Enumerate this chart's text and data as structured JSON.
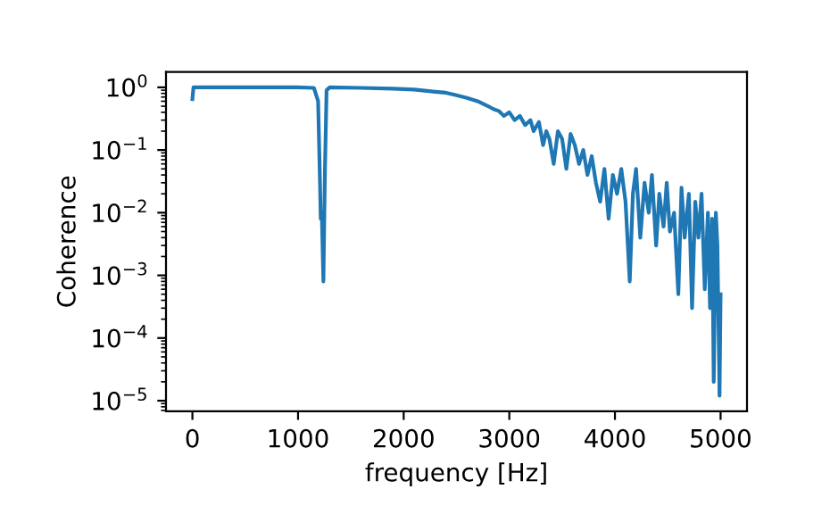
{
  "chart_data": {
    "type": "line",
    "xlabel": "frequency [Hz]",
    "ylabel": "Coherence",
    "log": "y",
    "grid": false,
    "legend": false,
    "marker": "none",
    "line_style": "solid",
    "xlim": [
      -250,
      5250
    ],
    "ylim": [
      6.8e-06,
      1.76
    ],
    "xticks": [
      0,
      1000,
      2000,
      3000,
      4000,
      5000
    ],
    "yticks": [
      {
        "value": 1e-05,
        "label": "10$^{−5}$"
      },
      {
        "value": 0.0001,
        "label": "10$^{−4}$"
      },
      {
        "value": 0.001,
        "label": "10$^{−3}$"
      },
      {
        "value": 0.01,
        "label": "10$^{−2}$"
      },
      {
        "value": 0.1,
        "label": "10$^{−1}$"
      },
      {
        "value": 1,
        "label": "10$^{0}$"
      }
    ],
    "x": [
      0,
      10,
      500,
      1000,
      1150,
      1190,
      1205,
      1215,
      1225,
      1240,
      1255,
      1270,
      1300,
      1600,
      1900,
      2100,
      2300,
      2400,
      2500,
      2600,
      2700,
      2800,
      2850,
      2900,
      2950,
      3000,
      3050,
      3100,
      3150,
      3200,
      3230,
      3280,
      3320,
      3350,
      3380,
      3420,
      3460,
      3500,
      3540,
      3580,
      3620,
      3660,
      3700,
      3740,
      3780,
      3820,
      3860,
      3900,
      3940,
      3980,
      4020,
      4060,
      4100,
      4140,
      4170,
      4200,
      4240,
      4280,
      4320,
      4350,
      4390,
      4420,
      4460,
      4490,
      4520,
      4560,
      4600,
      4630,
      4660,
      4700,
      4730,
      4760,
      4790,
      4820,
      4850,
      4880,
      4900,
      4920,
      4935,
      4955,
      4970,
      4990,
      5000
    ],
    "series": [
      {
        "color": "#1f77b4",
        "values": [
          0.65,
          1.0,
          1.0,
          1.0,
          0.98,
          0.6,
          0.05,
          0.008,
          0.01,
          0.0008,
          0.05,
          0.9,
          1.0,
          0.98,
          0.95,
          0.92,
          0.85,
          0.82,
          0.75,
          0.68,
          0.6,
          0.5,
          0.45,
          0.42,
          0.35,
          0.4,
          0.3,
          0.35,
          0.25,
          0.3,
          0.2,
          0.28,
          0.12,
          0.2,
          0.15,
          0.06,
          0.2,
          0.15,
          0.05,
          0.18,
          0.12,
          0.06,
          0.1,
          0.04,
          0.08,
          0.03,
          0.015,
          0.05,
          0.008,
          0.04,
          0.02,
          0.05,
          0.015,
          0.0008,
          0.02,
          0.05,
          0.004,
          0.03,
          0.01,
          0.04,
          0.003,
          0.02,
          0.006,
          0.03,
          0.005,
          0.01,
          0.0005,
          0.025,
          0.004,
          0.02,
          0.0003,
          0.015,
          0.004,
          0.02,
          0.0006,
          0.01,
          0.0003,
          0.008,
          2e-05,
          0.01,
          0.003,
          1.2e-05,
          0.0005
        ]
      }
    ]
  }
}
